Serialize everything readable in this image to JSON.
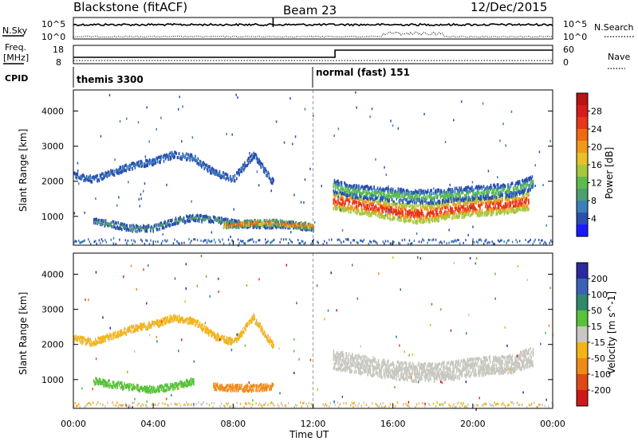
{
  "header": {
    "station": "Blackstone (fitACF)",
    "beam": "Beam 23",
    "date": "12/Dec/2015"
  },
  "summary": {
    "nsky_label": "N.Sky",
    "nsearch_label": "N.Search",
    "freq_label_line1": "Freq.",
    "freq_label_line2": "[MHz]",
    "nave_label": "Nave",
    "cpid_label": "CPID",
    "left_ticks_top": [
      "10^5",
      "10^0"
    ],
    "right_ticks_top": [
      "10^5",
      "10^0"
    ],
    "left_ticks_freq": [
      "18",
      "8"
    ],
    "right_ticks_nave": [
      "60",
      "0"
    ],
    "cpid_segments": [
      {
        "start_hour": 0,
        "label": "themis 3300"
      },
      {
        "start_hour": 12,
        "label": "normal (fast) 151"
      }
    ],
    "nave_step_hour": 13.1
  },
  "chart_data": [
    {
      "type": "heatmap",
      "panel": "power",
      "ylabel": "Slant Range [km]",
      "yticks": [
        "1000",
        "2000",
        "3000",
        "4000"
      ],
      "ylim": [
        180,
        4600
      ],
      "xlim": [
        0,
        24
      ],
      "colorbar": {
        "label": "Power [dB]",
        "ticks": [
          "4",
          "8",
          "12",
          "16",
          "20",
          "24",
          "28"
        ],
        "colors": [
          "#1a1aff",
          "#2a4fb0",
          "#3b7fb8",
          "#4e9e6e",
          "#5dbb4c",
          "#a6c83c",
          "#e8c02a",
          "#f09a1c",
          "#f06a12",
          "#e8361a",
          "#d81b1b",
          "#b81414"
        ]
      },
      "features": [
        {
          "name": "upper-arc",
          "hours": [
            0,
            1,
            2,
            3,
            4,
            5,
            6,
            7,
            8,
            9,
            10
          ],
          "range_km": [
            2200,
            2100,
            2300,
            2500,
            2600,
            2800,
            2700,
            2300,
            2100,
            2800,
            2000
          ],
          "level_db": 6
        },
        {
          "name": "low-band-morning",
          "hours": [
            1,
            2,
            3,
            4,
            5,
            6,
            7,
            8,
            9,
            10,
            11,
            12
          ],
          "range_km": [
            900,
            800,
            700,
            700,
            900,
            1000,
            950,
            850,
            800,
            800,
            800,
            700
          ],
          "level_db": 9
        },
        {
          "name": "hot-band-08-11",
          "hours": [
            7.5,
            8,
            9,
            10,
            11,
            12
          ],
          "range_km": [
            800,
            800,
            850,
            850,
            800,
            750
          ],
          "level_db": 22
        },
        {
          "name": "ground-scatter-night",
          "hours": [
            13,
            14,
            15,
            16,
            17,
            18,
            19,
            20,
            21,
            22,
            22.8
          ],
          "range_km": [
            1500,
            1400,
            1300,
            1200,
            1100,
            1150,
            1250,
            1300,
            1350,
            1400,
            1500
          ],
          "level_db": 26
        },
        {
          "name": "upper-band-night",
          "hours": [
            13,
            14,
            15,
            16,
            17,
            18,
            19,
            20,
            21,
            22,
            23
          ],
          "range_km": [
            1900,
            1750,
            1700,
            1650,
            1600,
            1600,
            1650,
            1700,
            1750,
            1800,
            2000
          ],
          "level_db": 13
        }
      ]
    },
    {
      "type": "heatmap",
      "panel": "velocity",
      "ylabel": "Slant Range [km]",
      "yticks": [
        "1000",
        "2000",
        "3000",
        "4000"
      ],
      "ylim": [
        180,
        4600
      ],
      "xlim": [
        0,
        24
      ],
      "xticks": [
        "00:00",
        "04:00",
        "08:00",
        "12:00",
        "16:00",
        "20:00",
        "00:00"
      ],
      "xlabel": "Time UT",
      "colorbar": {
        "label": "Velocity [m s^-1]",
        "ticks": [
          "200",
          "100",
          "50",
          "15",
          "-15",
          "-50",
          "-100",
          "-200"
        ],
        "colors": [
          "#2a2a9e",
          "#3a62b4",
          "#2e8a6a",
          "#58c23a",
          "#c8c8c0",
          "#f4b418",
          "#f08a16",
          "#e04818",
          "#d01818"
        ]
      },
      "features": [
        {
          "name": "upper-arc",
          "hours": [
            0,
            1,
            2,
            3,
            4,
            5,
            6,
            7,
            8,
            9,
            10
          ],
          "range_km": [
            2200,
            2100,
            2300,
            2500,
            2600,
            2800,
            2700,
            2300,
            2100,
            2800,
            2000
          ],
          "velocity": -20
        },
        {
          "name": "green-band-morning",
          "hours": [
            1,
            2,
            3,
            4,
            5,
            6
          ],
          "range_km": [
            1000,
            900,
            800,
            750,
            850,
            1000
          ],
          "velocity": 30
        },
        {
          "name": "orange-band-08",
          "hours": [
            7,
            8,
            9,
            10
          ],
          "range_km": [
            850,
            800,
            800,
            850
          ],
          "velocity": -60
        },
        {
          "name": "ground-scatter-night",
          "hours": [
            13,
            14,
            15,
            16,
            17,
            18,
            19,
            20,
            21,
            22,
            23
          ],
          "range_km": [
            1600,
            1500,
            1400,
            1300,
            1250,
            1250,
            1300,
            1400,
            1450,
            1500,
            1700
          ],
          "velocity": 0
        }
      ]
    }
  ]
}
